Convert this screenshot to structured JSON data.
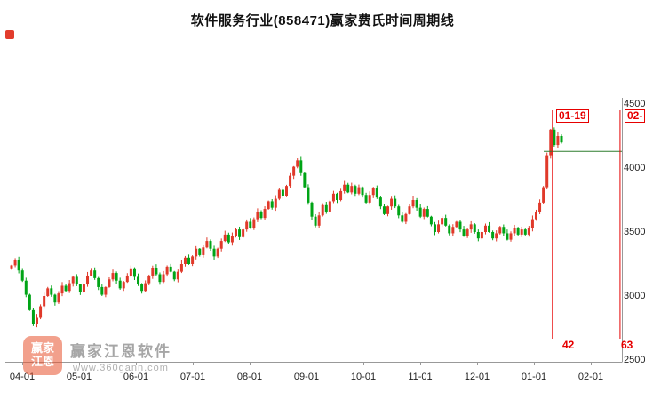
{
  "title": "软件服务行业(858471)赢家费氏时间周期线",
  "watermark": {
    "logo_chars": "赢家江恩",
    "name": "赢家江恩软件",
    "url": "www.360gann.com"
  },
  "chart_data": {
    "type": "candlestick",
    "title": "软件服务行业(858471)赢家费氏时间周期线",
    "ylim": [
      2500,
      4500
    ],
    "yticks": [
      "4500",
      "4000",
      "3500",
      "3000",
      "2500"
    ],
    "xticks": [
      "04-01",
      "05-01",
      "06-01",
      "07-01",
      "08-01",
      "09-01",
      "10-01",
      "11-01",
      "12-01",
      "01-01",
      "02-01"
    ],
    "grid": false,
    "legend_position": "none",
    "colors": {
      "up": "#e0392a",
      "down": "#00a416",
      "fib_line": "#e60000",
      "high_line": "#2f7d2f",
      "axis": "#999999"
    },
    "first_open": 3210,
    "closes": [
      3240,
      3280,
      3200,
      3120,
      3010,
      2890,
      2780,
      2830,
      2920,
      3000,
      3060,
      3010,
      2950,
      3020,
      3080,
      3040,
      3100,
      3150,
      3090,
      3030,
      3090,
      3160,
      3200,
      3140,
      3070,
      3010,
      3070,
      3130,
      3180,
      3120,
      3060,
      3110,
      3160,
      3210,
      3150,
      3090,
      3040,
      3100,
      3160,
      3220,
      3170,
      3110,
      3170,
      3230,
      3190,
      3130,
      3190,
      3250,
      3300,
      3250,
      3310,
      3370,
      3320,
      3380,
      3430,
      3370,
      3310,
      3370,
      3430,
      3480,
      3420,
      3470,
      3520,
      3460,
      3520,
      3580,
      3530,
      3600,
      3660,
      3610,
      3680,
      3740,
      3690,
      3760,
      3830,
      3780,
      3860,
      3940,
      4010,
      4060,
      3960,
      3850,
      3730,
      3620,
      3550,
      3630,
      3710,
      3660,
      3740,
      3800,
      3750,
      3820,
      3870,
      3810,
      3860,
      3800,
      3850,
      3790,
      3730,
      3790,
      3840,
      3770,
      3700,
      3640,
      3700,
      3760,
      3700,
      3630,
      3580,
      3640,
      3700,
      3750,
      3690,
      3620,
      3680,
      3620,
      3560,
      3500,
      3560,
      3610,
      3550,
      3490,
      3540,
      3580,
      3520,
      3470,
      3520,
      3560,
      3500,
      3450,
      3500,
      3550,
      3500,
      3450,
      3490,
      3540,
      3490,
      3440,
      3490,
      3530,
      3480,
      3520,
      3480,
      3530,
      3600,
      3660,
      3730,
      3850,
      4100,
      4300,
      4180,
      4250,
      4200
    ],
    "high_line_value": 4130,
    "fib_markers": [
      {
        "date_label": "01-19",
        "count_label": "42",
        "x_frac": 0.887
      },
      {
        "date_label": "02-",
        "count_label": "63",
        "x_frac": 0.997
      }
    ]
  }
}
